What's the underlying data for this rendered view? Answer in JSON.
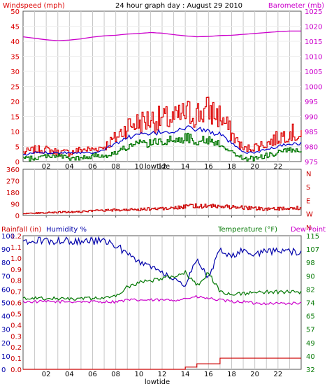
{
  "title": "24 hour graph day : August 29 2010",
  "colors": {
    "wind": "#dd0000",
    "gust_avg": "#0000cc",
    "wind_low": "#007700",
    "baro": "#cc00cc",
    "dir": "#cc0000",
    "hum": "#0000aa",
    "temp": "#007700",
    "dew": "#cc00cc",
    "rain": "#cc0000",
    "grid": "#c8c8c8"
  },
  "chart_data": [
    {
      "type": "line",
      "left_label": "Windspeed (mph)",
      "right_label": "Barometer (mb)",
      "left_ticks": [
        "0",
        "5",
        "10",
        "15",
        "20",
        "25",
        "30",
        "35",
        "40",
        "45",
        "50"
      ],
      "right_ticks": [
        "975",
        "980",
        "985",
        "990",
        "995",
        "1000",
        "1005",
        "1010",
        "1015",
        "1020",
        "1025"
      ],
      "x_ticks": [
        "02",
        "04",
        "06",
        "08",
        "10",
        "12",
        "14",
        "16",
        "18",
        "20",
        "22"
      ],
      "x_label": "lowtide",
      "ylim_left": [
        0,
        50
      ],
      "ylim_right": [
        975,
        1025
      ],
      "x": [
        0,
        1,
        2,
        3,
        4,
        5,
        6,
        7,
        8,
        9,
        10,
        11,
        12,
        13,
        14,
        15,
        16,
        17,
        18,
        19,
        20,
        21,
        22,
        23,
        24
      ],
      "series": [
        {
          "values": [
            3,
            4,
            4,
            3,
            3,
            4,
            4,
            5,
            8,
            12,
            13,
            14,
            14,
            14,
            16,
            16,
            17,
            15,
            9,
            4,
            5,
            6,
            8,
            10,
            8
          ]
        },
        {
          "values": [
            2,
            3,
            3,
            3,
            3,
            3,
            3,
            4,
            6,
            8,
            9,
            9,
            10,
            10,
            11,
            11,
            10,
            9,
            6,
            3,
            3,
            4,
            5,
            6,
            6
          ]
        },
        {
          "values": [
            1,
            1,
            2,
            2,
            1,
            1,
            2,
            2,
            3,
            5,
            6,
            6,
            7,
            7,
            8,
            7,
            7,
            6,
            3,
            1,
            1,
            2,
            3,
            4,
            3
          ]
        },
        {
          "values": [
            1016.5,
            1016.0,
            1015.5,
            1015.2,
            1015.4,
            1015.8,
            1016.4,
            1016.8,
            1017.0,
            1017.4,
            1017.6,
            1017.9,
            1017.7,
            1017.2,
            1016.8,
            1016.5,
            1016.6,
            1016.9,
            1017.0,
            1017.3,
            1017.6,
            1017.9,
            1018.2,
            1018.4,
            1018.4
          ]
        }
      ]
    },
    {
      "type": "line",
      "left_ticks": [
        "0",
        "90",
        "180",
        "270",
        "360"
      ],
      "right_ticks": [
        "N",
        "S",
        "E",
        "W",
        "N"
      ],
      "x_ticks": [
        "02",
        "04",
        "06",
        "08",
        "10",
        "12",
        "14",
        "16",
        "18",
        "20",
        "22"
      ],
      "x_label": "lowtide",
      "ylim": [
        0,
        360
      ],
      "x": [
        0,
        1,
        2,
        3,
        4,
        5,
        6,
        7,
        8,
        9,
        10,
        11,
        12,
        13,
        14,
        15,
        16,
        17,
        18,
        19,
        20,
        21,
        22,
        23,
        24
      ],
      "series": [
        {
          "values": [
            15,
            18,
            22,
            25,
            28,
            30,
            35,
            38,
            42,
            45,
            48,
            52,
            55,
            60,
            68,
            75,
            72,
            70,
            66,
            62,
            55,
            48,
            52,
            55,
            60
          ]
        }
      ]
    },
    {
      "type": "line",
      "left_labels": [
        "Rainfall (in)",
        "Humidity %"
      ],
      "right_labels": [
        "Temperature (°F)",
        "Dew Point"
      ],
      "rain_ticks": [
        "0.0",
        "0.1",
        "0.2",
        "0.3",
        "0.4",
        "0.5",
        "0.6",
        "0.7",
        "0.8",
        "0.9",
        "1.0",
        "1.1",
        "1.2"
      ],
      "hum_ticks": [
        "0",
        "10",
        "20",
        "30",
        "40",
        "50",
        "60",
        "70",
        "80",
        "90",
        "100"
      ],
      "temp_ticks": [
        "32",
        "40",
        "49",
        "57",
        "65",
        "74",
        "82",
        "90",
        "98",
        "107",
        "115"
      ],
      "x_ticks": [
        "02",
        "04",
        "06",
        "08",
        "10",
        "12",
        "14",
        "16",
        "18",
        "20",
        "22"
      ],
      "x_label": "lowtide",
      "ylim_hum": [
        0,
        100
      ],
      "ylim_temp": [
        32,
        115
      ],
      "ylim_rain": [
        0,
        1.2
      ],
      "x": [
        0,
        1,
        2,
        3,
        4,
        5,
        6,
        7,
        8,
        9,
        10,
        11,
        12,
        13,
        14,
        15,
        16,
        17,
        18,
        19,
        20,
        21,
        22,
        23,
        24
      ],
      "series": [
        {
          "values": [
            96,
            96,
            96,
            96,
            96,
            96,
            96,
            96,
            93,
            86,
            80,
            76,
            73,
            68,
            62,
            84,
            68,
            90,
            84,
            90,
            87,
            88,
            88,
            88,
            88
          ]
        },
        {
          "values": [
            76,
            76,
            76,
            76,
            76,
            76,
            76,
            76,
            78,
            83,
            86,
            87,
            88,
            90,
            92,
            84,
            92,
            80,
            79,
            79,
            80,
            80,
            80,
            80,
            80
          ]
        },
        {
          "values": [
            74,
            74,
            74,
            74,
            74,
            74,
            74,
            74,
            74,
            75,
            75,
            75,
            75,
            75,
            76,
            77,
            76,
            75,
            74,
            74,
            73,
            73,
            73,
            73,
            73
          ]
        },
        {
          "values": [
            0,
            0,
            0,
            0,
            0,
            0,
            0,
            0,
            0,
            0,
            0,
            0,
            0,
            0,
            0.02,
            0.05,
            0.05,
            0.1,
            0.1,
            0.1,
            0.1,
            0.1,
            0.1,
            0.1,
            0.1
          ]
        }
      ]
    }
  ]
}
